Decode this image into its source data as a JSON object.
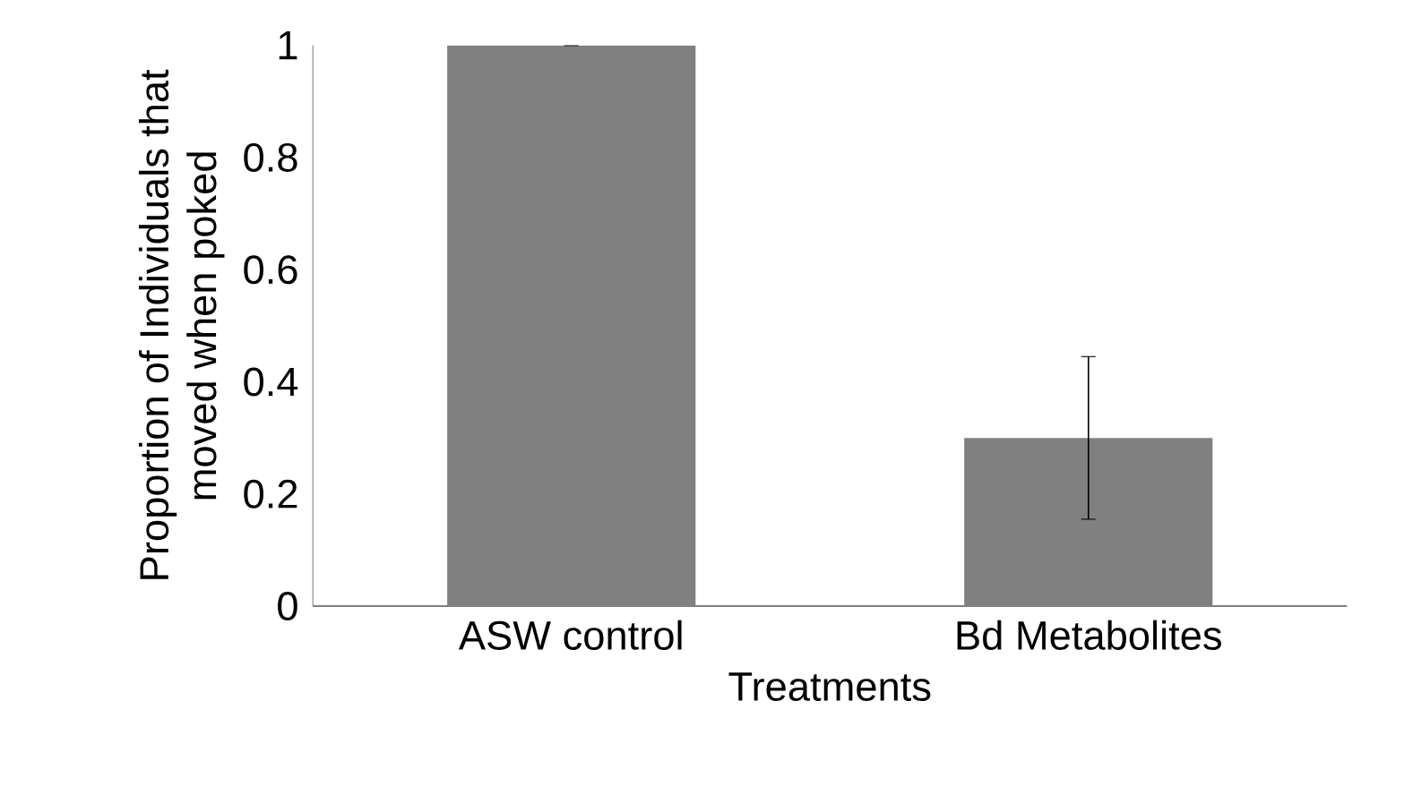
{
  "chart_data": {
    "type": "bar",
    "xlabel": "Treatments",
    "ylabel": "Proportion of Individuals that moved when poked",
    "categories": [
      "ASW control",
      "Bd Metabolites"
    ],
    "values": [
      1,
      0.3
    ],
    "errors": [
      0,
      0.145
    ],
    "color": "#808080",
    "ylim": [
      0,
      1
    ],
    "yticks": [
      0,
      0.2,
      0.4,
      0.6,
      0.8,
      1
    ],
    "grid": false
  }
}
